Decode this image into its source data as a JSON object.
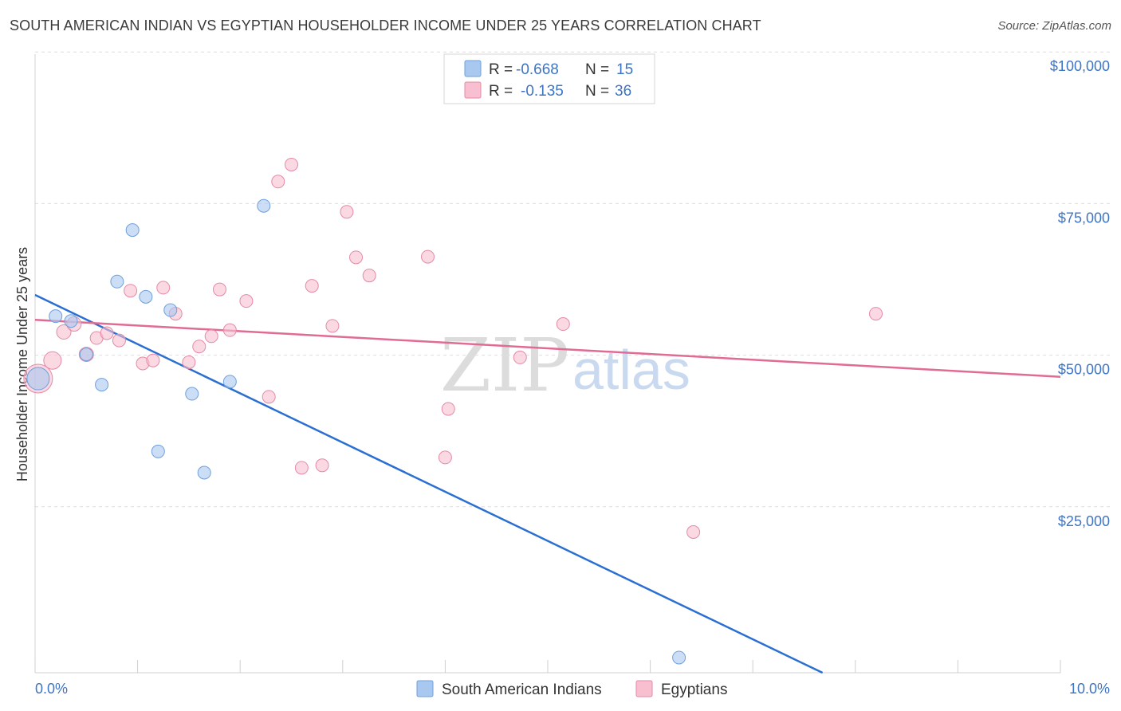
{
  "title": "SOUTH AMERICAN INDIAN VS EGYPTIAN HOUSEHOLDER INCOME UNDER 25 YEARS CORRELATION CHART",
  "source": "Source: ZipAtlas.com",
  "watermark": {
    "zip": "ZIP",
    "atlas": "atlas"
  },
  "legend": {
    "rows": [
      {
        "r_label": "R =",
        "r_value": "-0.668",
        "n_label": "N =",
        "n_value": "15",
        "color": "#a9c8f0",
        "stroke": "#6f9fdc"
      },
      {
        "r_label": "R =",
        "r_value": "-0.135",
        "n_label": "N =",
        "n_value": "36",
        "color": "#f7bfd0",
        "stroke": "#e58aa6"
      }
    ]
  },
  "bottom_legend": [
    {
      "label": "South American Indians",
      "color": "#a9c8f0",
      "stroke": "#6f9fdc"
    },
    {
      "label": "Egyptians",
      "color": "#f7bfd0",
      "stroke": "#e58aa6"
    }
  ],
  "chart_data": {
    "type": "scatter",
    "title": "SOUTH AMERICAN INDIAN VS EGYPTIAN HOUSEHOLDER INCOME UNDER 25 YEARS CORRELATION CHART",
    "xlabel": "",
    "ylabel": "Householder Income Under 25 years",
    "xlim": [
      0,
      10
    ],
    "ylim": [
      0,
      102000
    ],
    "x_tick_labels": [
      {
        "value": 0,
        "label": "0.0%"
      },
      {
        "value": 10,
        "label": "10.0%"
      }
    ],
    "y_ticks": [
      {
        "value": 25000,
        "label": "$25,000"
      },
      {
        "value": 50000,
        "label": "$50,000"
      },
      {
        "value": 75000,
        "label": "$75,000"
      },
      {
        "value": 100000,
        "label": "$100,000"
      }
    ],
    "series": [
      {
        "name": "South American Indians",
        "color": "#a9c8f0",
        "stroke": "#6f9fdc",
        "line_color": "#2a6fd1",
        "trend": {
          "x0": 0,
          "y0": 62300,
          "x1": 7.68,
          "y1": 0
        },
        "points": [
          {
            "x": 0.03,
            "y": 48500,
            "size": 14
          },
          {
            "x": 0.2,
            "y": 58800,
            "size": 8
          },
          {
            "x": 0.35,
            "y": 58000,
            "size": 8
          },
          {
            "x": 0.5,
            "y": 52500,
            "size": 8
          },
          {
            "x": 0.65,
            "y": 47500,
            "size": 8
          },
          {
            "x": 0.8,
            "y": 64500,
            "size": 8
          },
          {
            "x": 0.95,
            "y": 73000,
            "size": 8
          },
          {
            "x": 1.08,
            "y": 62000,
            "size": 8
          },
          {
            "x": 1.2,
            "y": 36500,
            "size": 8
          },
          {
            "x": 1.32,
            "y": 59800,
            "size": 8
          },
          {
            "x": 1.53,
            "y": 46000,
            "size": 8
          },
          {
            "x": 1.65,
            "y": 33000,
            "size": 8
          },
          {
            "x": 1.9,
            "y": 48000,
            "size": 8
          },
          {
            "x": 2.23,
            "y": 77000,
            "size": 8
          },
          {
            "x": 6.28,
            "y": 2500,
            "size": 8
          }
        ]
      },
      {
        "name": "Egyptians",
        "color": "#f7bfd0",
        "stroke": "#e58aa6",
        "line_color": "#e06c93",
        "trend": {
          "x0": 0,
          "y0": 58200,
          "x1": 10,
          "y1": 48800
        },
        "points": [
          {
            "x": 0.03,
            "y": 48500,
            "size": 18
          },
          {
            "x": 0.17,
            "y": 51500,
            "size": 11
          },
          {
            "x": 0.28,
            "y": 56200,
            "size": 9
          },
          {
            "x": 0.38,
            "y": 57500,
            "size": 9
          },
          {
            "x": 0.5,
            "y": 52500,
            "size": 9
          },
          {
            "x": 0.6,
            "y": 55200,
            "size": 8
          },
          {
            "x": 0.7,
            "y": 56000,
            "size": 8
          },
          {
            "x": 0.82,
            "y": 54800,
            "size": 8
          },
          {
            "x": 0.93,
            "y": 63000,
            "size": 8
          },
          {
            "x": 1.05,
            "y": 51000,
            "size": 8
          },
          {
            "x": 1.15,
            "y": 51500,
            "size": 8
          },
          {
            "x": 1.25,
            "y": 63500,
            "size": 8
          },
          {
            "x": 1.37,
            "y": 59200,
            "size": 8
          },
          {
            "x": 1.5,
            "y": 51200,
            "size": 8
          },
          {
            "x": 1.6,
            "y": 53800,
            "size": 8
          },
          {
            "x": 1.72,
            "y": 55500,
            "size": 8
          },
          {
            "x": 1.8,
            "y": 63200,
            "size": 8
          },
          {
            "x": 1.9,
            "y": 56500,
            "size": 8
          },
          {
            "x": 2.06,
            "y": 61300,
            "size": 8
          },
          {
            "x": 2.28,
            "y": 45500,
            "size": 8
          },
          {
            "x": 2.37,
            "y": 81000,
            "size": 8
          },
          {
            "x": 2.5,
            "y": 83800,
            "size": 8
          },
          {
            "x": 2.6,
            "y": 33800,
            "size": 8
          },
          {
            "x": 2.7,
            "y": 63800,
            "size": 8
          },
          {
            "x": 2.8,
            "y": 34200,
            "size": 8
          },
          {
            "x": 2.9,
            "y": 57200,
            "size": 8
          },
          {
            "x": 3.04,
            "y": 76000,
            "size": 8
          },
          {
            "x": 3.13,
            "y": 68500,
            "size": 8
          },
          {
            "x": 3.26,
            "y": 65500,
            "size": 8
          },
          {
            "x": 3.83,
            "y": 68600,
            "size": 8
          },
          {
            "x": 4.0,
            "y": 35500,
            "size": 8
          },
          {
            "x": 4.03,
            "y": 43500,
            "size": 8
          },
          {
            "x": 4.73,
            "y": 52000,
            "size": 8
          },
          {
            "x": 5.15,
            "y": 57500,
            "size": 8
          },
          {
            "x": 6.42,
            "y": 23200,
            "size": 8
          },
          {
            "x": 8.2,
            "y": 59200,
            "size": 8
          }
        ]
      }
    ]
  }
}
